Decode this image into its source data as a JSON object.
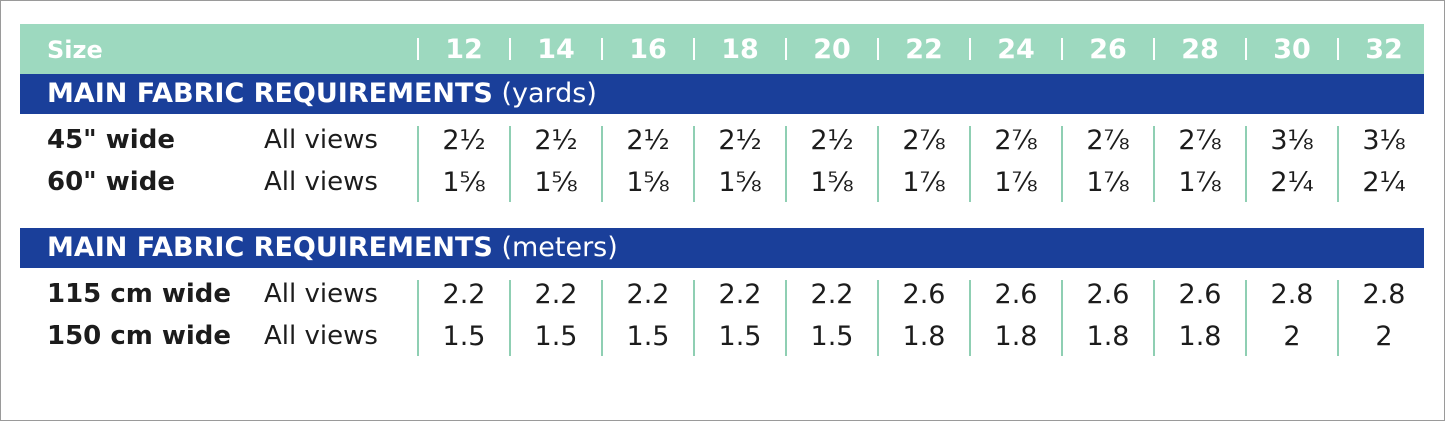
{
  "header": {
    "size_label": "Size",
    "sizes": [
      "12",
      "14",
      "16",
      "18",
      "20",
      "22",
      "24",
      "26",
      "28",
      "30",
      "32"
    ]
  },
  "sections": [
    {
      "title": "MAIN FABRIC REQUIREMENTS",
      "unit": "(yards)",
      "rows": [
        {
          "width": "45\" wide",
          "views": "All views",
          "values": [
            "2½",
            "2½",
            "2½",
            "2½",
            "2½",
            "2⅞",
            "2⅞",
            "2⅞",
            "2⅞",
            "3⅛",
            "3⅛"
          ]
        },
        {
          "width": "60\" wide",
          "views": "All views",
          "values": [
            "1⅝",
            "1⅝",
            "1⅝",
            "1⅝",
            "1⅝",
            "1⅞",
            "1⅞",
            "1⅞",
            "1⅞",
            "2¼",
            "2¼"
          ]
        }
      ]
    },
    {
      "title": "MAIN FABRIC REQUIREMENTS",
      "unit": "(meters)",
      "rows": [
        {
          "width": "115 cm wide",
          "views": "All views",
          "values": [
            "2.2",
            "2.2",
            "2.2",
            "2.2",
            "2.2",
            "2.6",
            "2.6",
            "2.6",
            "2.6",
            "2.8",
            "2.8"
          ]
        },
        {
          "width": "150 cm wide",
          "views": "All views",
          "values": [
            "1.5",
            "1.5",
            "1.5",
            "1.5",
            "1.5",
            "1.8",
            "1.8",
            "1.8",
            "1.8",
            "2",
            "2"
          ]
        }
      ]
    }
  ]
}
